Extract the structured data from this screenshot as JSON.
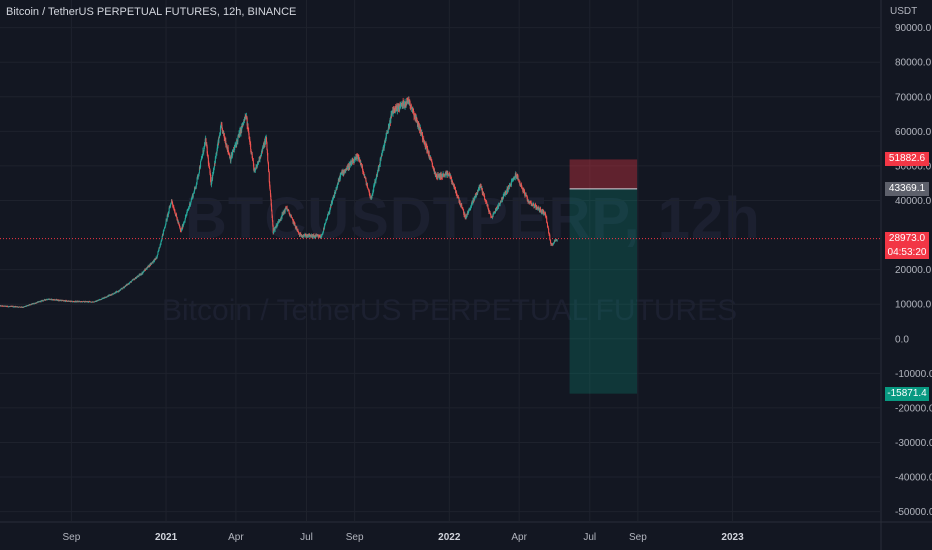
{
  "symbol_title": "Bitcoin / TetherUS PERPETUAL FUTURES, 12h, BINANCE",
  "watermark": {
    "ticker": "BTCUSDTPERP, 12h",
    "name": "Bitcoin / TetherUS PERPETUAL FUTURES"
  },
  "colors": {
    "background": "#131722",
    "up": "#26a69a",
    "down": "#ef5350",
    "stop_zone": "#f23645",
    "target_zone": "#089981"
  },
  "chart_data": {
    "type": "candlestick",
    "title": "Bitcoin / TetherUS PERPETUAL FUTURES, 12h, BINANCE",
    "price_axis_unit": "USDT",
    "y_ticks": [
      90000.0,
      80000.0,
      70000.0,
      60000.0,
      50000.0,
      40000.0,
      20000.0,
      10000.0,
      0.0,
      -10000.0,
      -20000.0,
      -30000.0,
      -40000.0,
      -50000.0
    ],
    "y_tick_labels": [
      "90000.0",
      "80000.0",
      "70000.0",
      "60000.0",
      "50000.0",
      "40000.0",
      "20000.0",
      "10000.0",
      "0.0",
      "-10000.0",
      "-20000.0",
      "-30000.0",
      "-40000.0",
      "-50000.0"
    ],
    "ylim": [
      -53000,
      98000
    ],
    "x_ticks": [
      {
        "label": "Sep",
        "date": "2020-09-01",
        "bold": false
      },
      {
        "label": "2021",
        "date": "2021-01-01",
        "bold": true
      },
      {
        "label": "Apr",
        "date": "2021-04-01",
        "bold": false
      },
      {
        "label": "Jul",
        "date": "2021-07-01",
        "bold": false
      },
      {
        "label": "Sep",
        "date": "2021-09-01",
        "bold": false
      },
      {
        "label": "2022",
        "date": "2022-01-01",
        "bold": true
      },
      {
        "label": "Apr",
        "date": "2022-04-01",
        "bold": false
      },
      {
        "label": "Jul",
        "date": "2022-07-01",
        "bold": false
      },
      {
        "label": "Sep",
        "date": "2022-09-01",
        "bold": false
      },
      {
        "label": "2023",
        "date": "2023-01-01",
        "bold": true
      }
    ],
    "xlim": [
      "2020-06-01",
      "2023-07-10"
    ],
    "price_path": [
      [
        "2020-06-01",
        9500
      ],
      [
        "2020-07-01",
        9200
      ],
      [
        "2020-08-01",
        11500
      ],
      [
        "2020-09-01",
        10800
      ],
      [
        "2020-10-01",
        10700
      ],
      [
        "2020-11-01",
        13800
      ],
      [
        "2020-12-01",
        19000
      ],
      [
        "2020-12-20",
        23500
      ],
      [
        "2021-01-08",
        40000
      ],
      [
        "2021-01-20",
        31000
      ],
      [
        "2021-02-08",
        44000
      ],
      [
        "2021-02-21",
        57500
      ],
      [
        "2021-02-28",
        45000
      ],
      [
        "2021-03-13",
        61500
      ],
      [
        "2021-03-25",
        52000
      ],
      [
        "2021-04-14",
        64500
      ],
      [
        "2021-04-25",
        48000
      ],
      [
        "2021-05-10",
        58000
      ],
      [
        "2021-05-19",
        31000
      ],
      [
        "2021-06-05",
        38000
      ],
      [
        "2021-06-22",
        30000
      ],
      [
        "2021-07-20",
        29500
      ],
      [
        "2021-08-14",
        47500
      ],
      [
        "2021-09-06",
        52800
      ],
      [
        "2021-09-22",
        40500
      ],
      [
        "2021-10-20",
        66000
      ],
      [
        "2021-11-10",
        69000
      ],
      [
        "2021-11-30",
        57000
      ],
      [
        "2021-12-15",
        47000
      ],
      [
        "2022-01-01",
        47500
      ],
      [
        "2022-01-22",
        35000
      ],
      [
        "2022-02-10",
        44500
      ],
      [
        "2022-02-24",
        35000
      ],
      [
        "2022-03-28",
        47500
      ],
      [
        "2022-04-12",
        40000
      ],
      [
        "2022-05-05",
        36000
      ],
      [
        "2022-05-12",
        27000
      ],
      [
        "2022-05-20",
        28973
      ]
    ],
    "highlight_period_start": "2022-06-05",
    "highlight_period_end": "2022-08-31",
    "position": {
      "type": "short",
      "start": "2022-06-05",
      "end": "2022-08-31",
      "stop": 51882.6,
      "entry": 43369.1,
      "target": -15871.4
    },
    "last_price": 28973.0,
    "price_labels": {
      "stop": "51882.6",
      "entry": "43369.1",
      "last": "28973.0",
      "countdown": "04:53:20",
      "target": "-15871.4"
    }
  }
}
